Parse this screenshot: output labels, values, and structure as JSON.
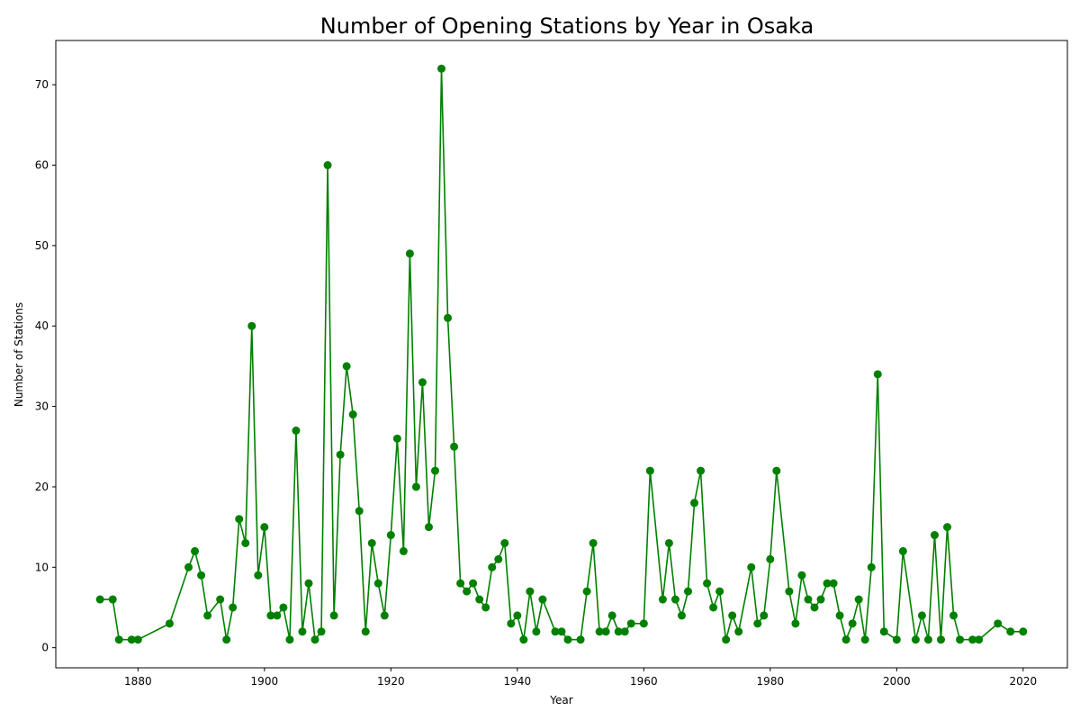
{
  "chart_data": {
    "type": "line",
    "title": "Number of Opening Stations by Year in Osaka",
    "xlabel": "Year",
    "ylabel": "Number of Stations",
    "xlim": [
      1867,
      2027
    ],
    "ylim": [
      -2.5,
      75.5
    ],
    "x_ticks": [
      1880,
      1900,
      1920,
      1940,
      1960,
      1980,
      2000,
      2020
    ],
    "y_ticks": [
      0,
      10,
      20,
      30,
      40,
      50,
      60,
      70
    ],
    "grid": false,
    "legend": "none",
    "color": "#008000",
    "series": [
      {
        "x": [
          1874,
          1876,
          1877,
          1879,
          1880,
          1885,
          1888,
          1889,
          1890,
          1891,
          1893,
          1894,
          1895,
          1896,
          1897,
          1898,
          1899,
          1900,
          1901,
          1902,
          1903,
          1904,
          1905,
          1906,
          1907,
          1908,
          1909,
          1910,
          1911,
          1912,
          1913,
          1914,
          1915,
          1916,
          1917,
          1918,
          1919,
          1920,
          1921,
          1922,
          1923,
          1924,
          1925,
          1926,
          1927,
          1928,
          1929,
          1930,
          1931,
          1932,
          1933,
          1934,
          1935,
          1936,
          1937,
          1938,
          1939,
          1940,
          1941,
          1942,
          1943,
          1944,
          1946,
          1947,
          1948,
          1950,
          1951,
          1952,
          1953,
          1954,
          1955,
          1956,
          1957,
          1958,
          1960,
          1961,
          1963,
          1964,
          1965,
          1966,
          1967,
          1968,
          1969,
          1970,
          1971,
          1972,
          1973,
          1974,
          1975,
          1977,
          1978,
          1979,
          1980,
          1981,
          1983,
          1984,
          1985,
          1986,
          1987,
          1988,
          1989,
          1990,
          1991,
          1992,
          1993,
          1994,
          1995,
          1996,
          1997,
          1998,
          2000,
          2001,
          2003,
          2004,
          2005,
          2006,
          2007,
          2008,
          2009,
          2010,
          2012,
          2013,
          2016,
          2018,
          2020
        ],
        "values": [
          6,
          6,
          1,
          1,
          1,
          3,
          10,
          12,
          9,
          4,
          6,
          1,
          5,
          16,
          13,
          40,
          9,
          15,
          4,
          4,
          5,
          1,
          27,
          2,
          8,
          1,
          2,
          60,
          4,
          24,
          35,
          29,
          17,
          2,
          13,
          8,
          4,
          14,
          26,
          12,
          49,
          20,
          33,
          15,
          22,
          72,
          41,
          25,
          8,
          7,
          8,
          6,
          5,
          10,
          11,
          13,
          3,
          4,
          1,
          7,
          2,
          6,
          2,
          2,
          1,
          1,
          7,
          13,
          2,
          2,
          4,
          2,
          2,
          3,
          3,
          22,
          6,
          13,
          6,
          4,
          7,
          18,
          22,
          8,
          5,
          7,
          1,
          4,
          2,
          10,
          3,
          4,
          11,
          22,
          7,
          3,
          9,
          6,
          5,
          6,
          8,
          8,
          4,
          1,
          3,
          6,
          1,
          10,
          34,
          2,
          1,
          12,
          1,
          4,
          1,
          14,
          1,
          15,
          4,
          1,
          1,
          1,
          3,
          2,
          2
        ]
      }
    ]
  }
}
